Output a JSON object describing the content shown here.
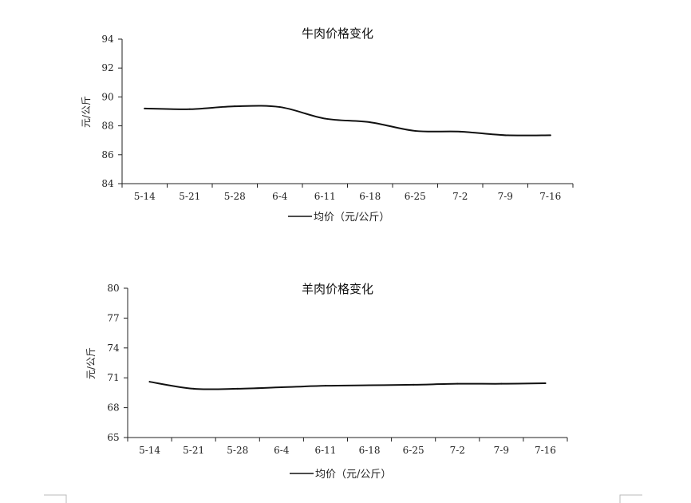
{
  "chart_data": [
    {
      "type": "line",
      "title": "牛肉价格变化",
      "ylabel": "元/公斤",
      "xlabel": "",
      "ylim": [
        84,
        94
      ],
      "yticks": [
        84,
        86,
        88,
        90,
        92,
        94
      ],
      "categories": [
        "5-14",
        "5-21",
        "5-28",
        "6-4",
        "6-11",
        "6-18",
        "6-25",
        "7-2",
        "7-9",
        "7-16"
      ],
      "series": [
        {
          "name": "均价（元/公斤）",
          "values": [
            89.2,
            89.15,
            89.35,
            89.3,
            88.5,
            88.25,
            87.65,
            87.6,
            87.35,
            87.35
          ]
        }
      ],
      "legend": {
        "position": "bottom",
        "label": "均价（元/公斤）"
      },
      "grid": false
    },
    {
      "type": "line",
      "title": "羊肉价格变化",
      "ylabel": "元/公斤",
      "xlabel": "",
      "ylim": [
        65,
        80
      ],
      "yticks": [
        65,
        68,
        71,
        74,
        77,
        80
      ],
      "categories": [
        "5-14",
        "5-21",
        "5-28",
        "6-4",
        "6-11",
        "6-18",
        "6-25",
        "7-2",
        "7-9",
        "7-16"
      ],
      "series": [
        {
          "name": "均价（元/公斤）",
          "values": [
            70.6,
            69.9,
            69.9,
            70.05,
            70.2,
            70.25,
            70.3,
            70.4,
            70.4,
            70.45
          ]
        }
      ],
      "legend": {
        "position": "bottom",
        "label": "均价（元/公斤）"
      },
      "grid": false
    }
  ]
}
